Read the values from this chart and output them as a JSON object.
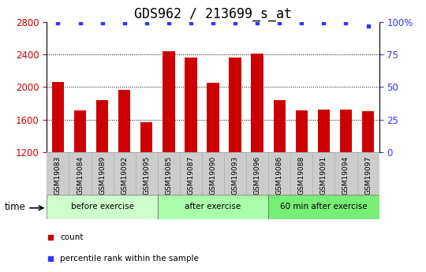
{
  "title": "GDS962 / 213699_s_at",
  "categories": [
    "GSM19083",
    "GSM19084",
    "GSM19089",
    "GSM19092",
    "GSM19095",
    "GSM19085",
    "GSM19087",
    "GSM19090",
    "GSM19093",
    "GSM19096",
    "GSM19086",
    "GSM19088",
    "GSM19091",
    "GSM19094",
    "GSM19097"
  ],
  "bar_values": [
    2060,
    1710,
    1840,
    1970,
    1570,
    2440,
    2365,
    2050,
    2360,
    2410,
    1840,
    1710,
    1720,
    1720,
    1700
  ],
  "percentile_values": [
    99,
    99,
    99,
    99,
    99,
    99,
    99,
    99,
    99,
    99,
    99,
    99,
    99,
    99,
    97
  ],
  "bar_color": "#cc0000",
  "percentile_color": "#3333ff",
  "ylim_left": [
    1200,
    2800
  ],
  "ylim_right": [
    0,
    100
  ],
  "yticks_left": [
    1200,
    1600,
    2000,
    2400,
    2800
  ],
  "yticks_right": [
    0,
    25,
    50,
    75,
    100
  ],
  "yticklabels_right": [
    "0",
    "25",
    "50",
    "75",
    "100%"
  ],
  "groups": [
    {
      "label": "before exercise",
      "start": 0,
      "end": 5,
      "color": "#ccffcc"
    },
    {
      "label": "after exercise",
      "start": 5,
      "end": 10,
      "color": "#aaffaa"
    },
    {
      "label": "60 min after exercise",
      "start": 10,
      "end": 15,
      "color": "#77ee77"
    }
  ],
  "legend_count_label": "count",
  "legend_percentile_label": "percentile rank within the sample",
  "xlabel_time": "time",
  "background_color": "#ffffff",
  "plot_bg_color": "#ffffff",
  "tick_label_color_left": "#cc0000",
  "tick_label_color_right": "#3333ff",
  "title_fontsize": 12,
  "tick_fontsize": 8.5,
  "bar_width": 0.55,
  "xtick_label_box_color": "#cccccc",
  "group_band_color_border": "#888888"
}
